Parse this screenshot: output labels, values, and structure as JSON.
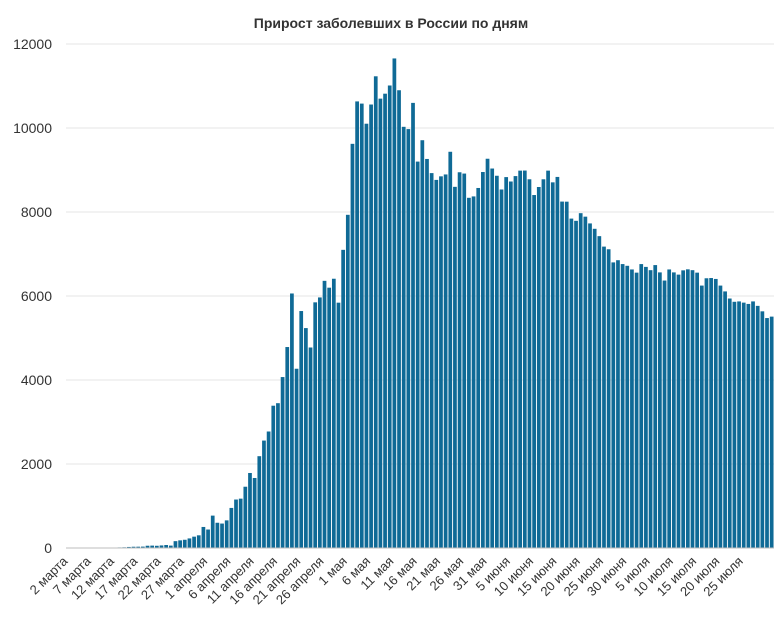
{
  "chart_data": {
    "type": "bar",
    "title": "Прирост заболевших в России по дням",
    "xlabel": "",
    "ylabel": "",
    "ylim": [
      0,
      12000
    ],
    "yticks": [
      0,
      2000,
      4000,
      6000,
      8000,
      10000,
      12000
    ],
    "grid": true,
    "legend": "none",
    "bar_color": "#0f6a96",
    "x_tick_labels": [
      "2 марта",
      "7 марта",
      "12 марта",
      "17 марта",
      "22 марта",
      "27 марта",
      "1 апреля",
      "6 апреля",
      "11 апреля",
      "16 апреля",
      "21 апреля",
      "26 апреля",
      "1 мая",
      "6 мая",
      "11 мая",
      "16 мая",
      "21 мая",
      "26 мая",
      "31 мая",
      "5 июня",
      "10 июня",
      "15 июня",
      "20 июня",
      "25 июня",
      "30 июня",
      "5 июля",
      "10 июля",
      "15 июля",
      "20 июля",
      "25 июля"
    ],
    "tick_every": 5,
    "values": [
      1,
      0,
      0,
      0,
      1,
      4,
      3,
      0,
      3,
      10,
      8,
      14,
      17,
      25,
      30,
      31,
      33,
      54,
      57,
      53,
      61,
      71,
      57,
      163,
      182,
      196,
      228,
      270,
      302,
      501,
      440,
      771,
      601,
      582,
      658,
      954,
      1154,
      1175,
      1459,
      1786,
      1667,
      2186,
      2558,
      2774,
      3388,
      3448,
      4070,
      4785,
      6060,
      4268,
      5642,
      5236,
      4774,
      5849,
      5966,
      6361,
      6198,
      6411,
      5841,
      7099,
      7933,
      9623,
      10633,
      10581,
      10102,
      10559,
      11231,
      10699,
      10817,
      11012,
      11656,
      10899,
      10028,
      9974,
      10598,
      9200,
      9709,
      9263,
      8926,
      8764,
      8849,
      8894,
      9434,
      8599,
      8946,
      8915,
      8338,
      8371,
      8572,
      8952,
      9268,
      9035,
      8863,
      8536,
      8831,
      8726,
      8855,
      8985,
      8987,
      8779,
      8404,
      8595,
      8779,
      8985,
      8706,
      8835,
      8248,
      8246,
      7843,
      7790,
      7972,
      7889,
      7728,
      7600,
      7425,
      7176,
      7113,
      6800,
      6852,
      6760,
      6719,
      6632,
      6556,
      6760,
      6693,
      6615,
      6736,
      6562,
      6368,
      6632,
      6562,
      6509,
      6611,
      6635,
      6615,
      6556,
      6248,
      6422,
      6428,
      6406,
      6248,
      6109,
      5940,
      5862,
      5871,
      5842,
      5811,
      5871,
      5765,
      5635,
      5475,
      5509
    ]
  }
}
